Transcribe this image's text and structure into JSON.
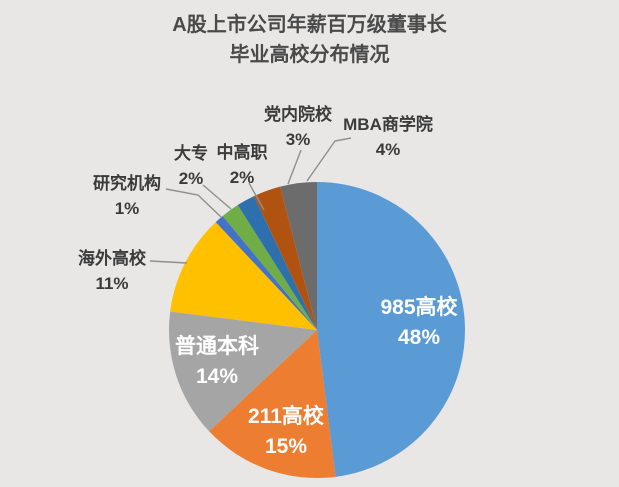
{
  "title": {
    "line1": "A股上市公司年薪百万级董事长",
    "line2": "毕业高校分布情况"
  },
  "colors": {
    "background": "#E8E7E6",
    "title_text": "#4A4A4A",
    "label_text": "#3B3B3B",
    "inside_label_text": "#FFFFFF",
    "leader_line": "#8F8F8F"
  },
  "chart_data": {
    "type": "pie",
    "title": "A股上市公司年薪百万级董事长毕业高校分布情况",
    "start_angle_deg": 0,
    "direction": "clockwise",
    "legend": "none",
    "label_style": "category name + percentage, leader lines for small slices",
    "slices": [
      {
        "name": "985高校",
        "pct": 48,
        "label": "985高校",
        "pct_label": "48%",
        "color": "#5B9BD5",
        "label_placement": "inside"
      },
      {
        "name": "211高校",
        "pct": 15,
        "label": "211高校",
        "pct_label": "15%",
        "color": "#ED7D31",
        "label_placement": "inside"
      },
      {
        "name": "普通本科",
        "pct": 14,
        "label": "普通本科",
        "pct_label": "14%",
        "color": "#A5A5A5",
        "label_placement": "inside"
      },
      {
        "name": "海外高校",
        "pct": 11,
        "label": "海外高校",
        "pct_label": "11%",
        "color": "#FFC000",
        "label_placement": "outside"
      },
      {
        "name": "研究机构",
        "pct": 1,
        "label": "研究机构",
        "pct_label": "1%",
        "color": "#4472C4",
        "label_placement": "outside"
      },
      {
        "name": "大专",
        "pct": 2,
        "label": "大专",
        "pct_label": "2%",
        "color": "#70AD47",
        "label_placement": "outside"
      },
      {
        "name": "中高职",
        "pct": 2,
        "label": "中高职",
        "pct_label": "2%",
        "color": "#2E6FAD",
        "label_placement": "outside"
      },
      {
        "name": "党内院校",
        "pct": 3,
        "label": "党内院校",
        "pct_label": "3%",
        "color": "#B05310",
        "label_placement": "outside"
      },
      {
        "name": "MBA商学院",
        "pct": 4,
        "label": "MBA商学院",
        "pct_label": "4%",
        "color": "#6C6C6C",
        "label_placement": "outside"
      }
    ]
  }
}
